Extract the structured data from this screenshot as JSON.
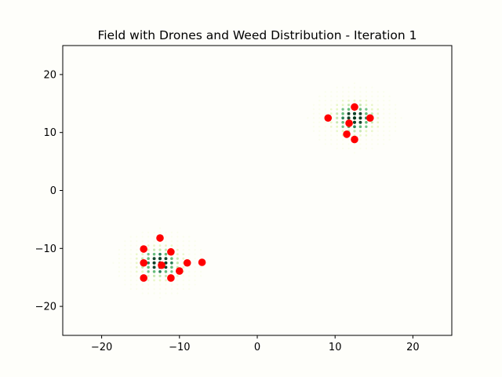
{
  "chart_data": {
    "type": "scatter",
    "title": "Field with Drones and Weed Distribution - Iteration 1",
    "xlabel": "",
    "ylabel": "",
    "xlim": [
      -25,
      25
    ],
    "ylim": [
      -25,
      25
    ],
    "xticks": [
      -20,
      -10,
      0,
      10,
      20
    ],
    "yticks": [
      -20,
      -10,
      0,
      10,
      20
    ],
    "xtick_labels": [
      "−20",
      "−10",
      "0",
      "10",
      "20"
    ],
    "ytick_labels": [
      "−20",
      "−10",
      "0",
      "10",
      "20"
    ],
    "grid": false,
    "legend": "none",
    "weed_grid": {
      "spacing": 0.75,
      "clusters": [
        {
          "center": [
            -12.5,
            -12.5
          ],
          "radius": 6.0
        },
        {
          "center": [
            12.5,
            12.5
          ],
          "radius": 6.0
        }
      ],
      "colormap": [
        "#f7fcdf",
        "#d9f0a3",
        "#addd8e",
        "#41ab5d",
        "#006837",
        "#00361b"
      ]
    },
    "drones": {
      "color": "#ff0000",
      "points": [
        [
          -12.5,
          -8.2
        ],
        [
          -14.6,
          -10.1
        ],
        [
          -11.1,
          -10.6
        ],
        [
          -14.6,
          -12.5
        ],
        [
          -12.3,
          -12.9
        ],
        [
          -9.0,
          -12.5
        ],
        [
          -7.1,
          -12.4
        ],
        [
          -10.0,
          -13.9
        ],
        [
          -14.6,
          -15.1
        ],
        [
          -11.1,
          -15.1
        ],
        [
          12.5,
          14.4
        ],
        [
          9.1,
          12.5
        ],
        [
          14.5,
          12.5
        ],
        [
          11.8,
          11.6
        ],
        [
          11.5,
          9.7
        ],
        [
          12.5,
          8.8
        ]
      ]
    }
  }
}
